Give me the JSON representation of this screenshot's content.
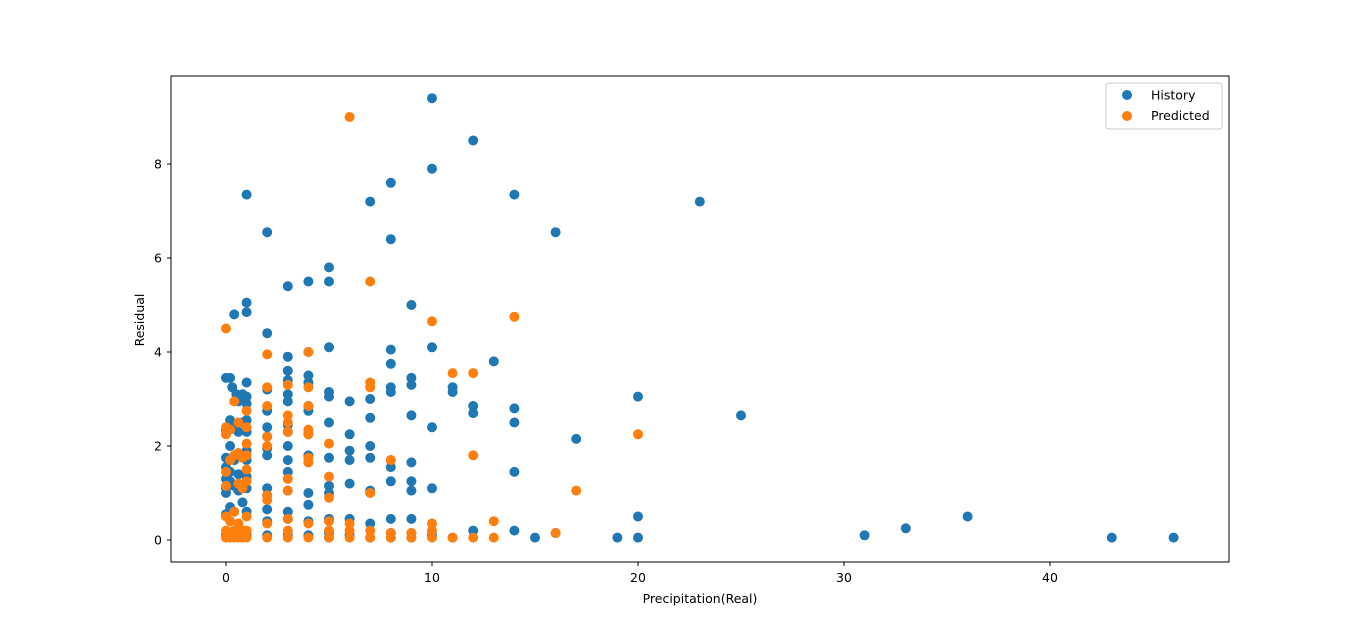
{
  "chart_data": {
    "type": "scatter",
    "title": "",
    "xlabel": "Precipitation(Real)",
    "ylabel": "Residual",
    "xlim": [
      -2.5,
      48.5
    ],
    "ylim": [
      -0.5,
      9.85
    ],
    "xticks": [
      0,
      10,
      20,
      30,
      40
    ],
    "yticks": [
      0,
      2,
      4,
      6,
      8
    ],
    "grid": false,
    "legend_position": "upper right",
    "legend": [
      "History",
      "Predicted"
    ],
    "colors": {
      "History": "#1f77b4",
      "Predicted": "#ff7f0e"
    },
    "series": [
      {
        "name": "History",
        "color": "#1f77b4",
        "points": [
          [
            10,
            9.4
          ],
          [
            12,
            8.5
          ],
          [
            10,
            7.9
          ],
          [
            8,
            7.6
          ],
          [
            14,
            7.35
          ],
          [
            1,
            7.35
          ],
          [
            7,
            7.2
          ],
          [
            23,
            7.2
          ],
          [
            2,
            6.55
          ],
          [
            16,
            6.55
          ],
          [
            8,
            6.4
          ],
          [
            5,
            5.8
          ],
          [
            4,
            5.5
          ],
          [
            5,
            5.5
          ],
          [
            3,
            5.4
          ],
          [
            1,
            5.05
          ],
          [
            9,
            5.0
          ],
          [
            0.4,
            4.8
          ],
          [
            1,
            4.85
          ],
          [
            2,
            4.4
          ],
          [
            5,
            4.1
          ],
          [
            10,
            4.1
          ],
          [
            4,
            4.0
          ],
          [
            8,
            4.05
          ],
          [
            3,
            3.9
          ],
          [
            13,
            3.8
          ],
          [
            8,
            3.75
          ],
          [
            3,
            3.6
          ],
          [
            4,
            3.5
          ],
          [
            0,
            3.45
          ],
          [
            0.2,
            3.45
          ],
          [
            1,
            3.35
          ],
          [
            3,
            3.4
          ],
          [
            9,
            3.45
          ],
          [
            4,
            3.35
          ],
          [
            0.3,
            3.25
          ],
          [
            2,
            3.2
          ],
          [
            8,
            3.25
          ],
          [
            9,
            3.3
          ],
          [
            11,
            3.25
          ],
          [
            11,
            3.15
          ],
          [
            5,
            3.15
          ],
          [
            8,
            3.15
          ],
          [
            0.5,
            3.1
          ],
          [
            0.8,
            3.1
          ],
          [
            1,
            3.05
          ],
          [
            3,
            3.1
          ],
          [
            5,
            3.05
          ],
          [
            20,
            3.05
          ],
          [
            7,
            3.0
          ],
          [
            0.6,
            2.95
          ],
          [
            1,
            2.9
          ],
          [
            3,
            2.95
          ],
          [
            6,
            2.95
          ],
          [
            4,
            2.85
          ],
          [
            12,
            2.85
          ],
          [
            2,
            2.75
          ],
          [
            14,
            2.8
          ],
          [
            4,
            2.75
          ],
          [
            12,
            2.7
          ],
          [
            9,
            2.65
          ],
          [
            25,
            2.65
          ],
          [
            7,
            2.6
          ],
          [
            0.2,
            2.55
          ],
          [
            1,
            2.55
          ],
          [
            0.8,
            2.5
          ],
          [
            5,
            2.5
          ],
          [
            14,
            2.5
          ],
          [
            3,
            2.45
          ],
          [
            0.4,
            2.45
          ],
          [
            10,
            2.4
          ],
          [
            2,
            2.4
          ],
          [
            0,
            2.35
          ],
          [
            0.6,
            2.3
          ],
          [
            1,
            2.3
          ],
          [
            3,
            2.3
          ],
          [
            4,
            2.25
          ],
          [
            6,
            2.25
          ],
          [
            2,
            2.2
          ],
          [
            17,
            2.15
          ],
          [
            0.2,
            2.0
          ],
          [
            3,
            2.0
          ],
          [
            7,
            2.0
          ],
          [
            2,
            1.95
          ],
          [
            1,
            1.9
          ],
          [
            6,
            1.9
          ],
          [
            0.6,
            1.85
          ],
          [
            2,
            1.8
          ],
          [
            4,
            1.8
          ],
          [
            5,
            1.75
          ],
          [
            7,
            1.75
          ],
          [
            0,
            1.75
          ],
          [
            0.4,
            1.7
          ],
          [
            1,
            1.7
          ],
          [
            3,
            1.7
          ],
          [
            8,
            1.7
          ],
          [
            9,
            1.65
          ],
          [
            4,
            1.65
          ],
          [
            6,
            1.7
          ],
          [
            0,
            1.55
          ],
          [
            8,
            1.55
          ],
          [
            0.2,
            1.45
          ],
          [
            3,
            1.45
          ],
          [
            14,
            1.45
          ],
          [
            0.6,
            1.4
          ],
          [
            1,
            1.35
          ],
          [
            0,
            1.3
          ],
          [
            8,
            1.25
          ],
          [
            9,
            1.25
          ],
          [
            0.2,
            1.25
          ],
          [
            6,
            1.2
          ],
          [
            5,
            1.15
          ],
          [
            0.4,
            1.15
          ],
          [
            0,
            1.1
          ],
          [
            1,
            1.1
          ],
          [
            2,
            1.1
          ],
          [
            10,
            1.1
          ],
          [
            3,
            1.05
          ],
          [
            9,
            1.05
          ],
          [
            0.6,
            1.05
          ],
          [
            7,
            1.05
          ],
          [
            0,
            1.0
          ],
          [
            4,
            1.0
          ],
          [
            5,
            1.0
          ],
          [
            2,
            0.95
          ],
          [
            0.8,
            0.8
          ],
          [
            4,
            0.75
          ],
          [
            0.2,
            0.7
          ],
          [
            2,
            0.65
          ],
          [
            1,
            0.6
          ],
          [
            3,
            0.6
          ],
          [
            0,
            0.55
          ],
          [
            20,
            0.5
          ],
          [
            36,
            0.5
          ],
          [
            5,
            0.45
          ],
          [
            8,
            0.45
          ],
          [
            9,
            0.45
          ],
          [
            6,
            0.45
          ],
          [
            3,
            0.45
          ],
          [
            4,
            0.4
          ],
          [
            2,
            0.4
          ],
          [
            7,
            0.35
          ],
          [
            33,
            0.25
          ],
          [
            12,
            0.2
          ],
          [
            14,
            0.2
          ],
          [
            16,
            0.15
          ],
          [
            31,
            0.1
          ],
          [
            5,
            0.15
          ],
          [
            8,
            0.15
          ],
          [
            9,
            0.15
          ],
          [
            0,
            0.1
          ],
          [
            0.5,
            0.1
          ],
          [
            1,
            0.1
          ],
          [
            2,
            0.1
          ],
          [
            3,
            0.1
          ],
          [
            4,
            0.1
          ],
          [
            5,
            0.05
          ],
          [
            6,
            0.1
          ],
          [
            7,
            0.05
          ],
          [
            8,
            0.05
          ],
          [
            9,
            0.05
          ],
          [
            10,
            0.1
          ],
          [
            11,
            0.05
          ],
          [
            15,
            0.05
          ],
          [
            19,
            0.05
          ],
          [
            20,
            0.05
          ],
          [
            43,
            0.05
          ],
          [
            46,
            0.05
          ]
        ]
      },
      {
        "name": "Predicted",
        "color": "#ff7f0e",
        "points": [
          [
            6,
            9.0
          ],
          [
            7,
            5.5
          ],
          [
            14,
            4.75
          ],
          [
            10,
            4.65
          ],
          [
            0,
            4.5
          ],
          [
            4,
            4.0
          ],
          [
            2,
            3.95
          ],
          [
            11,
            3.55
          ],
          [
            12,
            3.55
          ],
          [
            7,
            3.35
          ],
          [
            7,
            3.25
          ],
          [
            3,
            3.3
          ],
          [
            4,
            3.25
          ],
          [
            2,
            3.25
          ],
          [
            0.4,
            2.95
          ],
          [
            2,
            2.85
          ],
          [
            4,
            2.85
          ],
          [
            1,
            2.75
          ],
          [
            3,
            2.65
          ],
          [
            0.6,
            2.5
          ],
          [
            3,
            2.5
          ],
          [
            0,
            2.4
          ],
          [
            1,
            2.4
          ],
          [
            0.2,
            2.35
          ],
          [
            4,
            2.35
          ],
          [
            0,
            2.25
          ],
          [
            4,
            2.25
          ],
          [
            20,
            2.25
          ],
          [
            2,
            2.2
          ],
          [
            3,
            2.3
          ],
          [
            1,
            2.05
          ],
          [
            5,
            2.05
          ],
          [
            2,
            2.0
          ],
          [
            0.6,
            1.85
          ],
          [
            0.4,
            1.8
          ],
          [
            1,
            1.8
          ],
          [
            12,
            1.8
          ],
          [
            0.8,
            1.75
          ],
          [
            4,
            1.75
          ],
          [
            8,
            1.7
          ],
          [
            4,
            1.65
          ],
          [
            0.2,
            1.7
          ],
          [
            1,
            1.5
          ],
          [
            0,
            1.45
          ],
          [
            5,
            1.35
          ],
          [
            3,
            1.3
          ],
          [
            1,
            1.25
          ],
          [
            0.6,
            1.2
          ],
          [
            0,
            1.15
          ],
          [
            0.8,
            1.1
          ],
          [
            3,
            1.05
          ],
          [
            17,
            1.05
          ],
          [
            7,
            1.0
          ],
          [
            2,
            0.95
          ],
          [
            5,
            0.9
          ],
          [
            2,
            0.85
          ],
          [
            0.4,
            0.6
          ],
          [
            0,
            0.5
          ],
          [
            13,
            0.4
          ],
          [
            3,
            0.45
          ],
          [
            1,
            0.5
          ],
          [
            5,
            0.4
          ],
          [
            10,
            0.35
          ],
          [
            0.2,
            0.4
          ],
          [
            0.6,
            0.35
          ],
          [
            4,
            0.35
          ],
          [
            6,
            0.35
          ],
          [
            2,
            0.35
          ],
          [
            7,
            0.2
          ],
          [
            10,
            0.2
          ],
          [
            16,
            0.15
          ],
          [
            0,
            0.2
          ],
          [
            0.4,
            0.2
          ],
          [
            0.8,
            0.2
          ],
          [
            1,
            0.2
          ],
          [
            3,
            0.2
          ],
          [
            5,
            0.2
          ],
          [
            6,
            0.2
          ],
          [
            8,
            0.15
          ],
          [
            9,
            0.15
          ],
          [
            0,
            0.05
          ],
          [
            0.2,
            0.05
          ],
          [
            0.4,
            0.05
          ],
          [
            0.6,
            0.05
          ],
          [
            0.8,
            0.05
          ],
          [
            1,
            0.05
          ],
          [
            2,
            0.05
          ],
          [
            3,
            0.05
          ],
          [
            4,
            0.05
          ],
          [
            5,
            0.05
          ],
          [
            6,
            0.05
          ],
          [
            7,
            0.05
          ],
          [
            8,
            0.05
          ],
          [
            9,
            0.05
          ],
          [
            10,
            0.05
          ],
          [
            11,
            0.05
          ],
          [
            12,
            0.05
          ],
          [
            13,
            0.05
          ]
        ]
      }
    ]
  },
  "plot": {
    "xlabel": "Precipitation(Real)",
    "ylabel": "Residual",
    "legend": {
      "items": [
        {
          "label": "History"
        },
        {
          "label": "Predicted"
        }
      ]
    }
  }
}
